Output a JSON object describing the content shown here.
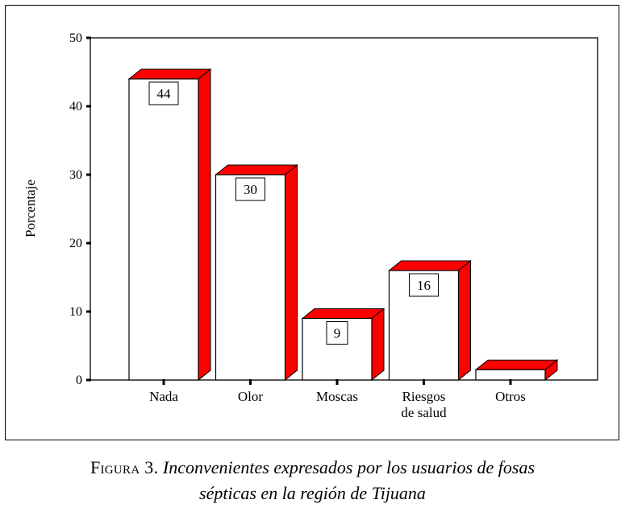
{
  "chart_data": {
    "type": "bar",
    "ylabel": "Porcentaje",
    "xlabel": "",
    "ylim": [
      0,
      50
    ],
    "yticks": [
      0,
      10,
      20,
      30,
      40,
      50
    ],
    "categories": [
      [
        "Nada"
      ],
      [
        "Olor"
      ],
      [
        "Moscas"
      ],
      [
        "Riesgos",
        "de salud"
      ],
      [
        "Otros"
      ]
    ],
    "values": [
      44,
      30,
      9,
      16,
      1.5
    ],
    "value_labels": [
      "44",
      "30",
      "9",
      "16",
      ""
    ],
    "grid": false,
    "style": "3d",
    "colors": {
      "bar_face": "#ffffff",
      "bar_depth": "#ff0000",
      "outline": "#000000"
    }
  },
  "caption": {
    "label": "Figura 3.",
    "line1": "Inconvenientes expresados por los usuarios de fosas",
    "line2": "sépticas en la región de Tijuana"
  }
}
